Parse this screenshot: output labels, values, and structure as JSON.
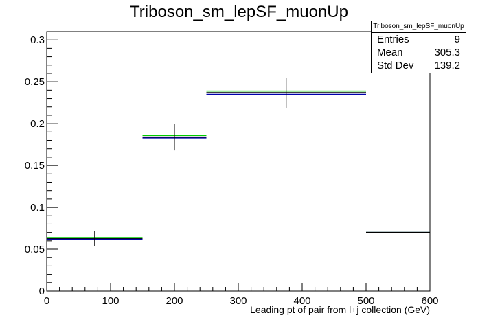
{
  "title": "Triboson_sm_lepSF_muonUp",
  "stats_box": {
    "name": "Triboson_sm_lepSF_muonUp",
    "rows": [
      {
        "label": "Entries",
        "value": "9"
      },
      {
        "label": "Mean",
        "value": "305.3"
      },
      {
        "label": "Std Dev",
        "value": "139.2"
      }
    ]
  },
  "chart_data": {
    "type": "histogram",
    "title": "Triboson_sm_lepSF_muonUp",
    "xlabel": "Leading pt of pair from l+j collection (GeV)",
    "ylabel": "",
    "xlim": [
      0,
      600
    ],
    "ylim": [
      0,
      0.31
    ],
    "x_ticks": [
      0,
      100,
      200,
      300,
      400,
      500,
      600
    ],
    "y_ticks": [
      0,
      0.05,
      0.1,
      0.15,
      0.2,
      0.25,
      0.3
    ],
    "y_tick_labels": [
      "0",
      "0.05",
      "0.1",
      "0.15",
      "0.2",
      "0.25",
      "0.3"
    ],
    "bin_edges": [
      [
        0,
        150
      ],
      [
        150,
        250
      ],
      [
        250,
        500
      ],
      [
        500,
        600
      ]
    ],
    "series": [
      {
        "color": "#000000",
        "values": [
          0.063,
          0.184,
          0.237,
          0.07
        ],
        "errors": [
          0.009,
          0.016,
          0.018,
          0.009
        ]
      },
      {
        "color": "#00cc00",
        "values": [
          0.064,
          0.186,
          0.239,
          0.07
        ]
      },
      {
        "color": "#0000aa",
        "values": [
          0.062,
          0.183,
          0.235,
          0.07
        ]
      }
    ],
    "grid": false,
    "legend": "none"
  }
}
